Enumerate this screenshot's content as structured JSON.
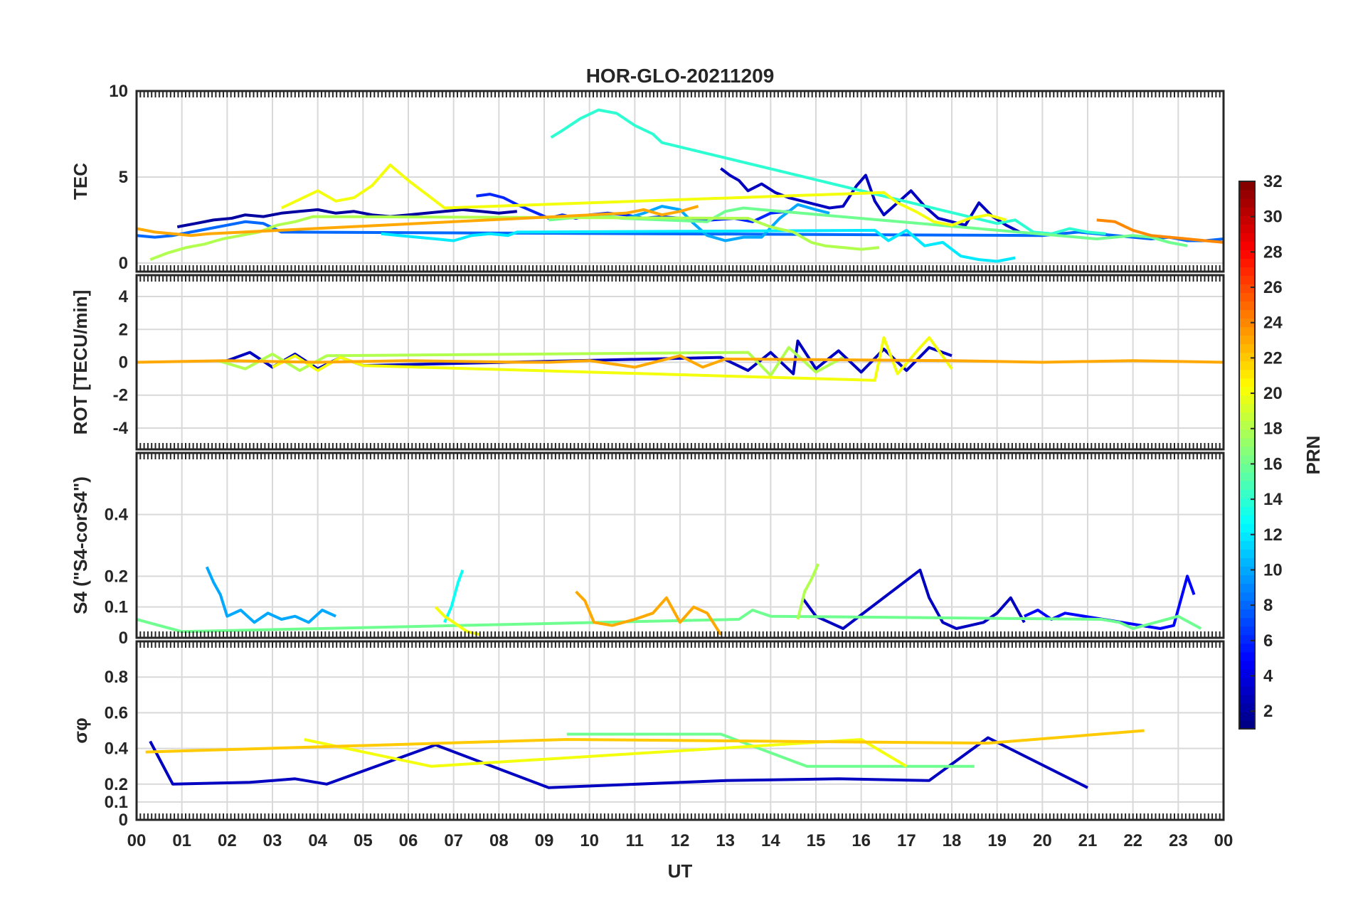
{
  "chart_data": {
    "type": "line",
    "title": "HOR-GLO-20211209",
    "xlabel": "UT",
    "x_tick_labels": [
      "00",
      "01",
      "02",
      "03",
      "04",
      "05",
      "06",
      "07",
      "08",
      "09",
      "10",
      "11",
      "12",
      "13",
      "14",
      "15",
      "16",
      "17",
      "18",
      "19",
      "20",
      "21",
      "22",
      "23",
      "00"
    ],
    "xlim_hours": [
      0,
      24
    ],
    "grid": true,
    "colorbar": {
      "label": "PRN",
      "range": [
        1,
        32
      ],
      "ticks": [
        "2",
        "4",
        "6",
        "8",
        "10",
        "12",
        "14",
        "16",
        "18",
        "20",
        "22",
        "24",
        "26",
        "28",
        "30",
        "32"
      ],
      "colormap": "jet"
    },
    "panels": [
      {
        "id": "tec",
        "ylabel": "TEC",
        "ylim": [
          -0.5,
          10
        ],
        "y_ticks": [
          "0",
          "5",
          "10"
        ],
        "y_tick_values": [
          0,
          5,
          10
        ],
        "series": [
          {
            "prn": 2,
            "x": [
              0.9,
              1.3,
              1.7,
              2.1,
              2.4,
              2.8,
              3.2,
              3.6,
              4.0,
              4.4,
              4.8,
              5.2,
              5.6,
              6.0,
              6.4,
              6.8,
              7.2,
              7.6,
              8.0,
              8.4
            ],
            "y": [
              2.1,
              2.3,
              2.5,
              2.6,
              2.8,
              2.7,
              2.9,
              3.0,
              3.1,
              2.9,
              3.0,
              2.8,
              2.7,
              2.8,
              2.9,
              3.0,
              3.1,
              3.0,
              2.9,
              3.0
            ]
          },
          {
            "prn": 3,
            "x": [
              12.9,
              13.1,
              13.3,
              13.5,
              13.8,
              14.1,
              14.4,
              14.7,
              15.0,
              15.3,
              15.6,
              15.9,
              16.1,
              16.3,
              16.5,
              16.8,
              17.1,
              17.4,
              17.7,
              18.0,
              18.3,
              18.6,
              18.9,
              19.2,
              19.5
            ],
            "y": [
              5.5,
              5.1,
              4.8,
              4.2,
              4.6,
              4.1,
              3.8,
              3.6,
              3.4,
              3.2,
              3.3,
              4.5,
              5.1,
              3.6,
              2.8,
              3.5,
              4.2,
              3.3,
              2.6,
              2.4,
              2.2,
              3.5,
              2.7,
              2.2,
              1.8
            ]
          },
          {
            "prn": 6,
            "x": [
              7.5,
              7.8,
              8.1,
              8.4,
              9.1,
              9.4,
              9.7,
              10.0,
              10.4,
              10.8,
              11.2,
              11.6,
              12.0,
              12.4,
              12.7,
              13.2,
              13.6,
              14.0,
              14.4
            ],
            "y": [
              3.9,
              4.0,
              3.8,
              3.4,
              2.6,
              2.8,
              2.6,
              2.8,
              2.9,
              2.8,
              2.6,
              2.7,
              2.6,
              2.5,
              2.5,
              2.6,
              2.4,
              2.9,
              3.0
            ]
          },
          {
            "prn": 8,
            "x": [
              0.0,
              0.4,
              0.8,
              1.2,
              1.6,
              2.0,
              2.4,
              2.8,
              3.2,
              20.0,
              20.4,
              20.8,
              21.2,
              21.6,
              22.0,
              22.4,
              22.8,
              23.2,
              23.6,
              24.0
            ],
            "y": [
              1.6,
              1.5,
              1.6,
              1.8,
              2.0,
              2.2,
              2.4,
              2.3,
              1.8,
              1.6,
              1.7,
              1.8,
              1.7,
              1.6,
              1.5,
              1.4,
              1.5,
              1.3,
              1.3,
              1.4
            ]
          },
          {
            "prn": 10,
            "x": [
              10.8,
              11.2,
              11.6,
              12.0,
              12.3,
              12.6,
              13.0,
              13.4,
              13.8,
              14.2,
              14.6,
              15.0,
              15.3
            ],
            "y": [
              2.6,
              2.9,
              3.3,
              3.1,
              2.3,
              1.6,
              1.3,
              1.5,
              1.5,
              2.6,
              3.4,
              3.1,
              2.9
            ]
          },
          {
            "prn": 12,
            "x": [
              5.4,
              5.8,
              6.2,
              6.6,
              7.0,
              7.4,
              7.8,
              8.2,
              8.4,
              16.3,
              16.6,
              17.0,
              17.4,
              17.8,
              18.2,
              18.6,
              19.0,
              19.4
            ],
            "y": [
              1.7,
              1.6,
              1.5,
              1.4,
              1.3,
              1.6,
              1.7,
              1.6,
              1.8,
              1.9,
              1.3,
              1.9,
              1.0,
              1.2,
              0.4,
              0.2,
              0.1,
              0.3
            ]
          },
          {
            "prn": 14,
            "x": [
              9.15,
              9.4,
              9.8,
              10.2,
              10.6,
              11.0,
              11.4,
              11.6,
              19.0,
              19.4,
              19.8,
              20.2,
              20.6,
              21.0,
              21.4
            ],
            "y": [
              7.3,
              7.7,
              8.4,
              8.9,
              8.7,
              8.0,
              7.5,
              7.0,
              2.3,
              2.5,
              1.8,
              1.7,
              2.0,
              1.8,
              1.7
            ]
          },
          {
            "prn": 16,
            "x": [
              9.1,
              9.5,
              9.9,
              10.3,
              10.7,
              12.6,
              13.0,
              13.4,
              13.8,
              21.2,
              21.6,
              22.0,
              22.4,
              22.8,
              23.2
            ],
            "y": [
              2.5,
              2.6,
              2.7,
              2.8,
              2.6,
              2.4,
              3.0,
              3.2,
              3.1,
              1.4,
              1.5,
              1.6,
              1.5,
              1.2,
              1.0
            ]
          },
          {
            "prn": 18,
            "x": [
              0.3,
              0.7,
              1.1,
              1.5,
              1.9,
              2.3,
              2.7,
              3.1,
              3.5,
              3.9,
              13.5,
              14.0,
              14.5,
              14.9,
              15.2,
              15.6,
              16.0,
              16.4
            ],
            "y": [
              0.2,
              0.6,
              0.9,
              1.1,
              1.4,
              1.6,
              1.8,
              2.2,
              2.4,
              2.7,
              2.6,
              2.1,
              1.8,
              1.2,
              1.0,
              0.9,
              0.8,
              0.9
            ]
          },
          {
            "prn": 20,
            "x": [
              3.2,
              3.6,
              4.0,
              4.4,
              4.8,
              5.2,
              5.6,
              6.0,
              6.4,
              6.8,
              16.5,
              16.8,
              17.2,
              17.6,
              18.0,
              18.4,
              18.8,
              19.2
            ],
            "y": [
              3.2,
              3.7,
              4.2,
              3.6,
              3.8,
              4.5,
              5.7,
              4.8,
              4.0,
              3.2,
              4.1,
              3.5,
              3.0,
              2.4,
              2.2,
              2.6,
              2.8,
              2.5
            ]
          },
          {
            "prn": 23,
            "x": [
              0.0,
              0.4,
              0.8,
              1.2,
              1.6,
              10.8,
              11.2,
              11.6,
              12.0,
              12.4
            ],
            "y": [
              2.0,
              1.8,
              1.7,
              1.6,
              1.7,
              2.9,
              3.1,
              2.8,
              3.0,
              3.3
            ]
          },
          {
            "prn": 24,
            "x": [
              21.2,
              21.6,
              22.0,
              22.4,
              22.8,
              23.2,
              23.6,
              24.0
            ],
            "y": [
              2.5,
              2.4,
              1.9,
              1.6,
              1.5,
              1.4,
              1.3,
              1.2
            ]
          }
        ]
      },
      {
        "id": "rot",
        "ylabel": "ROT [TECU/min]",
        "ylim": [
          -5.3,
          5.3
        ],
        "y_ticks": [
          "-4",
          "-2",
          "0",
          "2",
          "4"
        ],
        "y_tick_values": [
          -4,
          -2,
          0,
          2,
          4
        ],
        "series": [
          {
            "prn": 3,
            "x": [
              2.0,
              2.5,
              3.0,
              3.5,
              4.0,
              4.5,
              5.0,
              12.9,
              13.5,
              14.0,
              14.5,
              14.6,
              15.0,
              15.5,
              16.0,
              16.5,
              17.0,
              17.5,
              18.0
            ],
            "y": [
              0.1,
              0.6,
              -0.3,
              0.5,
              -0.4,
              0.3,
              -0.2,
              0.3,
              -0.5,
              0.6,
              -0.7,
              1.3,
              -0.4,
              0.7,
              -0.6,
              0.8,
              -0.5,
              0.9,
              0.4
            ]
          },
          {
            "prn": 18,
            "x": [
              1.8,
              2.4,
              3.0,
              3.6,
              4.2,
              13.5,
              14.0,
              14.4,
              15.0,
              15.6
            ],
            "y": [
              0.1,
              -0.4,
              0.5,
              -0.5,
              0.4,
              0.6,
              -0.8,
              0.9,
              -0.6,
              0.3
            ]
          },
          {
            "prn": 20,
            "x": [
              3.0,
              3.5,
              4.0,
              4.5,
              5.0,
              16.3,
              16.5,
              16.8,
              17.3,
              17.5,
              18.0
            ],
            "y": [
              -0.3,
              0.4,
              -0.5,
              0.3,
              -0.2,
              -1.1,
              1.5,
              -0.7,
              0.9,
              1.5,
              -0.4
            ]
          },
          {
            "prn": 23,
            "x": [
              0.0,
              2.0,
              4.0,
              6.0,
              8.5,
              9.1,
              10.0,
              11.0,
              12.0,
              12.5,
              13.0,
              18.0,
              20.0,
              22.0,
              24.0
            ],
            "y": [
              0.0,
              0.1,
              0.0,
              0.1,
              0.0,
              0.0,
              0.1,
              -0.3,
              0.4,
              -0.3,
              0.2,
              0.1,
              0.0,
              0.1,
              0.0
            ]
          }
        ]
      },
      {
        "id": "s4",
        "ylabel": "S4 (\"S4-corS4\")",
        "ylim": [
          0,
          0.6
        ],
        "y_ticks": [
          "0",
          "0.1",
          "0.2",
          "0.4"
        ],
        "y_tick_values": [
          0,
          0.1,
          0.2,
          0.4
        ],
        "series": [
          {
            "prn": 3,
            "x": [
              14.7,
              15.0,
              15.3,
              15.6,
              17.3,
              17.5,
              17.8,
              18.1,
              18.4,
              18.7,
              19.0,
              19.3,
              19.6
            ],
            "y": [
              0.13,
              0.07,
              0.05,
              0.03,
              0.22,
              0.13,
              0.05,
              0.03,
              0.04,
              0.05,
              0.08,
              0.13,
              0.05
            ]
          },
          {
            "prn": 5,
            "x": [
              19.6,
              19.9,
              20.2,
              20.5,
              22.6,
              22.9,
              23.2,
              23.35
            ],
            "y": [
              0.07,
              0.09,
              0.06,
              0.08,
              0.03,
              0.04,
              0.2,
              0.14
            ]
          },
          {
            "prn": 10,
            "x": [
              1.55,
              1.7,
              1.85,
              2.0,
              2.3,
              2.6,
              2.9,
              3.2,
              3.5,
              3.8,
              4.1,
              4.4
            ],
            "y": [
              0.23,
              0.18,
              0.14,
              0.07,
              0.09,
              0.05,
              0.08,
              0.06,
              0.07,
              0.05,
              0.09,
              0.07
            ]
          },
          {
            "prn": 13,
            "x": [
              6.8,
              6.95,
              7.1,
              7.2
            ],
            "y": [
              0.05,
              0.1,
              0.18,
              0.22
            ]
          },
          {
            "prn": 16,
            "x": [
              0.0,
              0.5,
              1.0,
              13.3,
              13.6,
              14.0,
              21.3,
              21.7,
              22.0,
              23.0,
              23.5
            ],
            "y": [
              0.06,
              0.04,
              0.02,
              0.06,
              0.09,
              0.07,
              0.06,
              0.05,
              0.03,
              0.07,
              0.03
            ]
          },
          {
            "prn": 18,
            "x": [
              14.6,
              14.75,
              14.9,
              15.05
            ],
            "y": [
              0.06,
              0.15,
              0.19,
              0.24
            ]
          },
          {
            "prn": 20,
            "x": [
              6.6,
              6.8,
              7.0,
              7.3,
              7.6
            ],
            "y": [
              0.1,
              0.07,
              0.05,
              0.02,
              0.01
            ]
          },
          {
            "prn": 23,
            "x": [
              9.7,
              9.9,
              10.1,
              10.5,
              11.0,
              11.4,
              11.7,
              12.0,
              12.3,
              12.6,
              12.9
            ],
            "y": [
              0.15,
              0.12,
              0.05,
              0.04,
              0.06,
              0.08,
              0.13,
              0.05,
              0.1,
              0.08,
              0.01
            ]
          }
        ]
      },
      {
        "id": "sigma_phi",
        "ylabel": "σφ",
        "ylim": [
          0,
          1
        ],
        "y_ticks": [
          "0",
          "0.1",
          "0.2",
          "0.4",
          "0.6",
          "0.8"
        ],
        "y_tick_values": [
          0,
          0.1,
          0.2,
          0.4,
          0.6,
          0.8
        ],
        "series": [
          {
            "prn": 3,
            "x": [
              0.3,
              0.8,
              2.5,
              3.5,
              4.2,
              6.6,
              9.1,
              13.0,
              15.5,
              17.5,
              18.8,
              21.0
            ],
            "y": [
              0.44,
              0.2,
              0.21,
              0.23,
              0.2,
              0.42,
              0.18,
              0.22,
              0.23,
              0.22,
              0.46,
              0.18
            ]
          },
          {
            "prn": 16,
            "x": [
              9.5,
              12.9,
              14.8,
              18.5
            ],
            "y": [
              0.48,
              0.48,
              0.3,
              0.3
            ]
          },
          {
            "prn": 20,
            "x": [
              3.7,
              6.5,
              16.0,
              17.0
            ],
            "y": [
              0.45,
              0.3,
              0.45,
              0.3
            ]
          },
          {
            "prn": 22,
            "x": [
              0.2,
              9.5,
              18.8,
              22.25
            ],
            "y": [
              0.38,
              0.45,
              0.43,
              0.5
            ]
          }
        ]
      }
    ]
  }
}
